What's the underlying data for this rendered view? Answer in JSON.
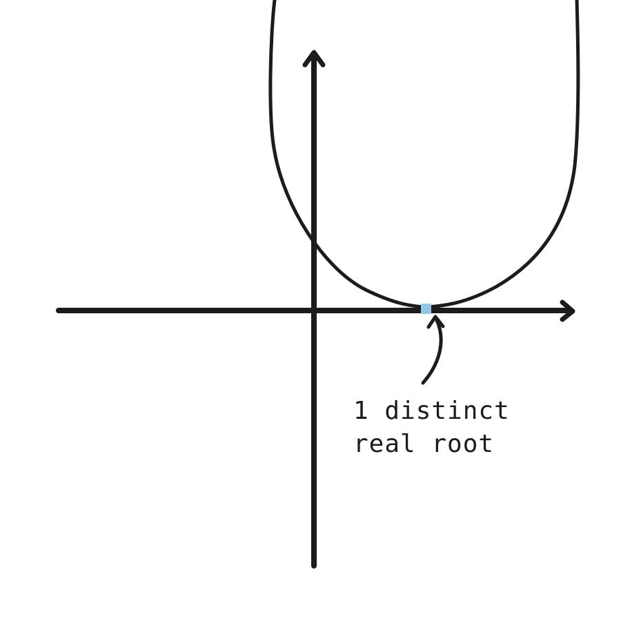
{
  "annotation": {
    "line1": "1 distinct",
    "line2": "real root"
  },
  "colors": {
    "ink": "#1c1c1c",
    "root_marker": "#8ec9e8"
  }
}
